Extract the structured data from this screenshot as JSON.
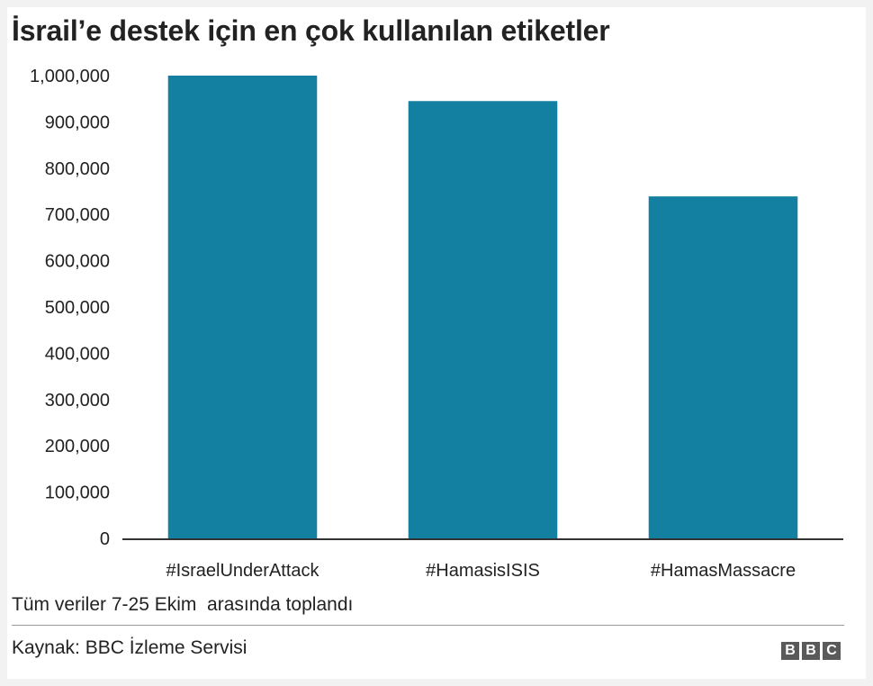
{
  "chart_data": {
    "type": "bar",
    "title": "İsrail’e destek için en çok kullanılan etiketler",
    "categories": [
      "#IsraelUnderAttack",
      "#HamasisISIS",
      "#HamasMassacre"
    ],
    "values": [
      1000000,
      945000,
      739000
    ],
    "ylim": [
      0,
      1000000
    ],
    "yticks": [
      0,
      100000,
      200000,
      300000,
      400000,
      500000,
      600000,
      700000,
      800000,
      900000,
      1000000
    ],
    "ytick_labels": [
      "0",
      "100,000",
      "200,000",
      "300,000",
      "400,000",
      "500,000",
      "600,000",
      "700,000",
      "800,000",
      "900,000",
      "1,000,000"
    ],
    "xlabel": "",
    "ylabel": "",
    "grid": false,
    "bar_color": "#1380a1"
  },
  "footer": {
    "note": "Tüm veriler 7-25 Ekim  arasında toplandı",
    "source": "Kaynak: BBC İzleme Servisi",
    "logo_letters": [
      "B",
      "B",
      "C"
    ]
  }
}
